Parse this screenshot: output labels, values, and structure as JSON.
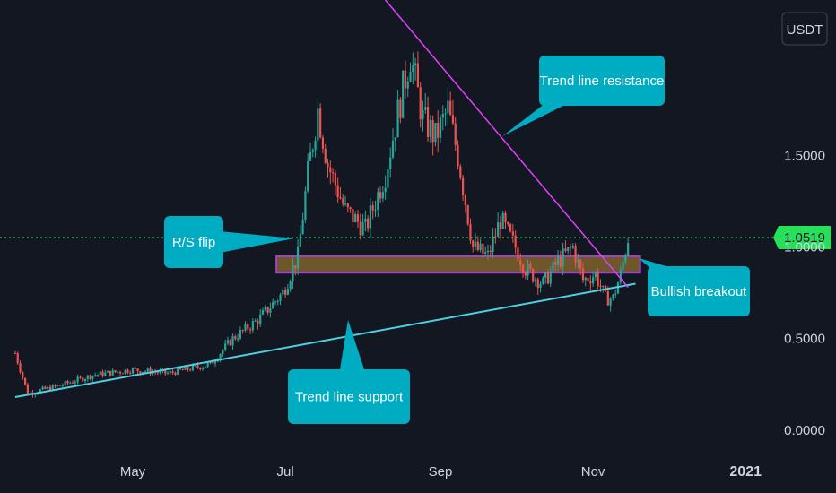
{
  "currency_label": "USDT",
  "colors": {
    "background": "#131722",
    "up_candle": "#26a69a",
    "down_candle": "#ef5350",
    "support_line": "#4dd0e1",
    "resistance_line": "#e040fb",
    "callout_fill": "#00acc1",
    "current_price_tag": "#26e05a",
    "zone_fill": "#8d6e2f",
    "zone_border": "#a044c8"
  },
  "chart_data": {
    "type": "candlestick",
    "x_ticks": [
      "May",
      "Jul",
      "Sep",
      "Nov",
      "2021"
    ],
    "y_ticks": [
      "0.0000",
      "0.5000",
      "1.5000"
    ],
    "ylim": [
      -0.05,
      2.35
    ],
    "current_price": 1.0519,
    "current_price_label": "1.0519",
    "hidden_tick_label": "1.0000",
    "trend_support": {
      "label": "Trend line support",
      "start": [
        "2020-03-15",
        0.18
      ],
      "end": [
        "2020-11-18",
        0.8
      ]
    },
    "trend_resistance": {
      "label": "Trend line resistance",
      "start": [
        "2020-08-10",
        2.35
      ],
      "end": [
        "2020-11-15",
        0.78
      ]
    },
    "rs_zone": {
      "label": "R/S flip",
      "top": 0.95,
      "bottom": 0.86,
      "start": "2020-07-01",
      "end": "2020-11-17"
    },
    "breakout_label": "Bullish breakout",
    "price_path": [
      [
        "2020-03-15",
        0.42
      ],
      [
        "2020-03-20",
        0.2
      ],
      [
        "2020-04-01",
        0.24
      ],
      [
        "2020-04-15",
        0.3
      ],
      [
        "2020-05-01",
        0.33
      ],
      [
        "2020-05-15",
        0.31
      ],
      [
        "2020-06-01",
        0.36
      ],
      [
        "2020-06-10",
        0.5
      ],
      [
        "2020-06-20",
        0.6
      ],
      [
        "2020-06-30",
        0.75
      ],
      [
        "2020-07-06",
        0.95
      ],
      [
        "2020-07-10",
        1.4
      ],
      [
        "2020-07-14",
        1.75
      ],
      [
        "2020-07-18",
        1.45
      ],
      [
        "2020-07-25",
        1.2
      ],
      [
        "2020-08-02",
        1.1
      ],
      [
        "2020-08-10",
        1.4
      ],
      [
        "2020-08-16",
        1.8
      ],
      [
        "2020-08-20",
        2.05
      ],
      [
        "2020-08-25",
        1.7
      ],
      [
        "2020-08-30",
        1.6
      ],
      [
        "2020-09-04",
        1.75
      ],
      [
        "2020-09-08",
        1.5
      ],
      [
        "2020-09-14",
        1.0
      ],
      [
        "2020-09-20",
        0.95
      ],
      [
        "2020-09-25",
        1.15
      ],
      [
        "2020-10-01",
        1.0
      ],
      [
        "2020-10-05",
        0.88
      ],
      [
        "2020-10-12",
        0.8
      ],
      [
        "2020-10-18",
        0.92
      ],
      [
        "2020-10-24",
        1.0
      ],
      [
        "2020-10-28",
        0.82
      ],
      [
        "2020-11-02",
        0.85
      ],
      [
        "2020-11-06",
        0.72
      ],
      [
        "2020-11-09",
        0.72
      ],
      [
        "2020-11-12",
        0.85
      ],
      [
        "2020-11-15",
        1.05
      ]
    ]
  }
}
